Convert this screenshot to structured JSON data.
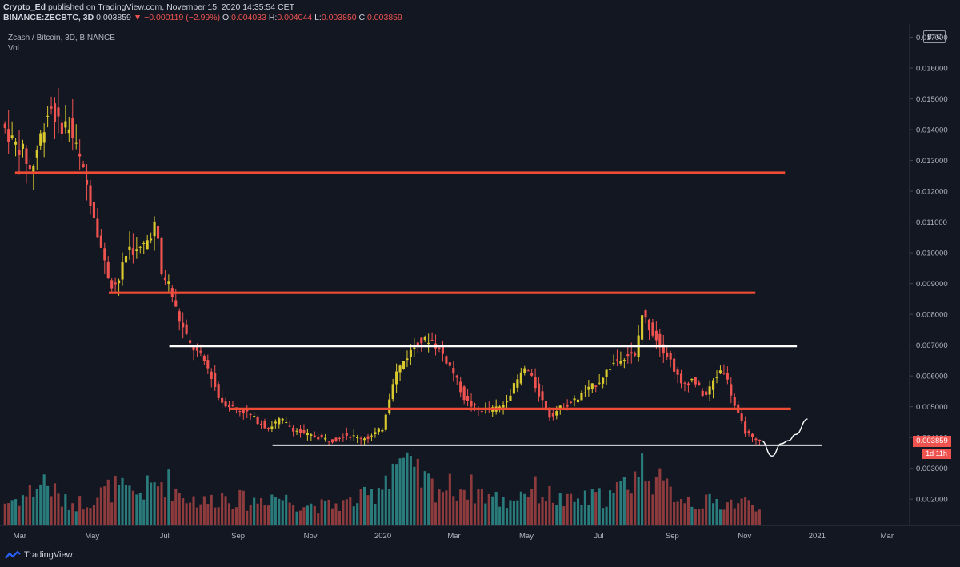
{
  "header": {
    "user": "Crypto_Ed",
    "published_text": " published on TradingView.com, November 15, 2020 14:35:54 CET",
    "symbol": "BINANCE:ZECBTC, 3D",
    "last": "0.003859",
    "change": "−0.000119 (−2.99%)",
    "o_label": "O:",
    "o_value": "0.004033",
    "h_label": "H:",
    "h_value": "0.004044",
    "l_label": "L:",
    "l_value": "0.003850",
    "c_label": "C:",
    "c_value": "0.003859"
  },
  "legend": {
    "title": "Zcash / Bitcoin, 3D, BINANCE",
    "vol": "Vol"
  },
  "scale": {
    "currency": "BTC",
    "last_price": "0.003859",
    "countdown": "1d 11h"
  },
  "footer": {
    "brand": "TradingView"
  },
  "colors": {
    "background": "#131722",
    "bull": "#d9c92e",
    "bear": "#ef5350",
    "resistance": "#ef4b35",
    "support": "#ffffff",
    "vol_bull": "#2a7c7c",
    "vol_bear": "#8e3b3e",
    "axis_text": "#b2b5be"
  },
  "chart_data": {
    "type": "candlestick",
    "title": "Zcash / Bitcoin, 3D, BINANCE",
    "y_axis": {
      "ticks": [
        "0.017000",
        "0.016000",
        "0.015000",
        "0.014000",
        "0.013000",
        "0.012000",
        "0.011000",
        "0.010000",
        "0.009000",
        "0.008000",
        "0.007000",
        "0.006000",
        "0.005000",
        "0.004000",
        "0.003000",
        "0.002000"
      ],
      "tick_values": [
        0.017,
        0.016,
        0.015,
        0.014,
        0.013,
        0.012,
        0.011,
        0.01,
        0.009,
        0.008,
        0.007,
        0.006,
        0.005,
        0.004,
        0.003,
        0.002
      ],
      "range": [
        0.0012,
        0.0173
      ]
    },
    "x_axis": {
      "range": [
        "2019-02-15",
        "2021-03-20"
      ],
      "ticks": [
        {
          "label": "Mar",
          "date": "2019-03-01"
        },
        {
          "label": "May",
          "date": "2019-05-01"
        },
        {
          "label": "Jul",
          "date": "2019-07-01"
        },
        {
          "label": "Sep",
          "date": "2019-09-01"
        },
        {
          "label": "Nov",
          "date": "2019-11-01"
        },
        {
          "label": "2020",
          "date": "2020-01-01"
        },
        {
          "label": "Mar",
          "date": "2020-03-01"
        },
        {
          "label": "May",
          "date": "2020-05-01"
        },
        {
          "label": "Jul",
          "date": "2020-07-01"
        },
        {
          "label": "Sep",
          "date": "2020-09-01"
        },
        {
          "label": "Nov",
          "date": "2020-11-01"
        },
        {
          "label": "2021",
          "date": "2021-01-01"
        },
        {
          "label": "Mar",
          "date": "2021-03-01"
        }
      ]
    },
    "price_series": [
      [
        "2019-02-15",
        0.0142
      ],
      [
        "2019-02-25",
        0.0136
      ],
      [
        "2019-03-05",
        0.0133
      ],
      [
        "2019-03-12",
        0.0126
      ],
      [
        "2019-03-20",
        0.0138
      ],
      [
        "2019-03-28",
        0.0148
      ],
      [
        "2019-04-05",
        0.0141
      ],
      [
        "2019-04-12",
        0.0142
      ],
      [
        "2019-04-20",
        0.0133
      ],
      [
        "2019-04-28",
        0.0122
      ],
      [
        "2019-05-05",
        0.0111
      ],
      [
        "2019-05-12",
        0.0098
      ],
      [
        "2019-05-18",
        0.009
      ],
      [
        "2019-05-24",
        0.009
      ],
      [
        "2019-06-02",
        0.0102
      ],
      [
        "2019-06-10",
        0.01
      ],
      [
        "2019-06-18",
        0.0104
      ],
      [
        "2019-06-25",
        0.011
      ],
      [
        "2019-06-30",
        0.0093
      ],
      [
        "2019-07-06",
        0.009
      ],
      [
        "2019-07-14",
        0.0079
      ],
      [
        "2019-07-24",
        0.007
      ],
      [
        "2019-08-03",
        0.0066
      ],
      [
        "2019-08-10",
        0.0061
      ],
      [
        "2019-08-18",
        0.0052
      ],
      [
        "2019-08-28",
        0.005
      ],
      [
        "2019-09-10",
        0.0048
      ],
      [
        "2019-09-20",
        0.0045
      ],
      [
        "2019-09-28",
        0.0043
      ],
      [
        "2019-10-08",
        0.0046
      ],
      [
        "2019-10-18",
        0.0043
      ],
      [
        "2019-10-28",
        0.0041
      ],
      [
        "2019-11-10",
        0.004
      ],
      [
        "2019-11-20",
        0.0039
      ],
      [
        "2019-12-02",
        0.0041
      ],
      [
        "2019-12-12",
        0.004
      ],
      [
        "2019-12-22",
        0.004
      ],
      [
        "2020-01-02",
        0.0043
      ],
      [
        "2020-01-12",
        0.006
      ],
      [
        "2020-01-22",
        0.0066
      ],
      [
        "2020-02-01",
        0.0071
      ],
      [
        "2020-02-12",
        0.0072
      ],
      [
        "2020-02-22",
        0.0067
      ],
      [
        "2020-03-02",
        0.0061
      ],
      [
        "2020-03-12",
        0.0052
      ],
      [
        "2020-03-22",
        0.0049
      ],
      [
        "2020-04-02",
        0.0049
      ],
      [
        "2020-04-12",
        0.005
      ],
      [
        "2020-04-24",
        0.0058
      ],
      [
        "2020-05-02",
        0.0063
      ],
      [
        "2020-05-12",
        0.0055
      ],
      [
        "2020-05-22",
        0.0047
      ],
      [
        "2020-06-02",
        0.005
      ],
      [
        "2020-06-12",
        0.0052
      ],
      [
        "2020-06-22",
        0.0055
      ],
      [
        "2020-07-02",
        0.0058
      ],
      [
        "2020-07-12",
        0.0063
      ],
      [
        "2020-07-20",
        0.0066
      ],
      [
        "2020-07-28",
        0.0067
      ],
      [
        "2020-08-02",
        0.0066
      ],
      [
        "2020-08-08",
        0.008
      ],
      [
        "2020-08-14",
        0.0076
      ],
      [
        "2020-08-22",
        0.0071
      ],
      [
        "2020-09-01",
        0.0065
      ],
      [
        "2020-09-10",
        0.0057
      ],
      [
        "2020-09-20",
        0.0059
      ],
      [
        "2020-09-30",
        0.0053
      ],
      [
        "2020-10-08",
        0.0059
      ],
      [
        "2020-10-15",
        0.0063
      ],
      [
        "2020-10-20",
        0.0057
      ],
      [
        "2020-10-26",
        0.0049
      ],
      [
        "2020-11-03",
        0.0042
      ],
      [
        "2020-11-10",
        0.0039
      ],
      [
        "2020-11-15",
        0.003859
      ]
    ],
    "volume_series": [
      [
        "2019-02-15",
        0.3
      ],
      [
        "2019-03-05",
        0.4
      ],
      [
        "2019-03-20",
        0.6
      ],
      [
        "2019-04-05",
        0.3
      ],
      [
        "2019-04-20",
        0.3
      ],
      [
        "2019-05-05",
        0.4
      ],
      [
        "2019-05-18",
        0.5
      ],
      [
        "2019-06-02",
        0.4
      ],
      [
        "2019-06-18",
        0.5
      ],
      [
        "2019-06-30",
        0.6
      ],
      [
        "2019-07-14",
        0.4
      ],
      [
        "2019-08-03",
        0.3
      ],
      [
        "2019-08-18",
        0.4
      ],
      [
        "2019-09-10",
        0.3
      ],
      [
        "2019-09-28",
        0.4
      ],
      [
        "2019-10-18",
        0.3
      ],
      [
        "2019-11-10",
        0.25
      ],
      [
        "2019-12-02",
        0.3
      ],
      [
        "2019-12-22",
        0.4
      ],
      [
        "2020-01-12",
        0.9
      ],
      [
        "2020-01-22",
        0.7
      ],
      [
        "2020-02-12",
        0.5
      ],
      [
        "2020-03-12",
        0.5
      ],
      [
        "2020-04-12",
        0.3
      ],
      [
        "2020-05-02",
        0.5
      ],
      [
        "2020-06-02",
        0.3
      ],
      [
        "2020-07-12",
        0.4
      ],
      [
        "2020-08-08",
        0.8
      ],
      [
        "2020-08-22",
        0.5
      ],
      [
        "2020-09-20",
        0.3
      ],
      [
        "2020-10-15",
        0.3
      ],
      [
        "2020-11-10",
        0.3
      ]
    ],
    "horizontal_lines": [
      {
        "price": 0.0126,
        "start": "2019-02-25",
        "end": "2020-12-05",
        "color": "resistance"
      },
      {
        "price": 0.0087,
        "start": "2019-05-15",
        "end": "2020-11-10",
        "color": "resistance"
      },
      {
        "price": 0.00697,
        "start": "2019-07-05",
        "end": "2020-12-15",
        "color": "support"
      },
      {
        "price": 0.00493,
        "start": "2019-08-25",
        "end": "2020-12-10",
        "color": "resistance"
      },
      {
        "price": 0.00375,
        "start": "2019-09-30",
        "end": "2021-01-05",
        "color": "support"
      }
    ],
    "projection": [
      [
        "2020-11-15",
        0.0039
      ],
      [
        "2020-11-24",
        0.0034
      ],
      [
        "2020-12-02",
        0.0038
      ],
      [
        "2020-12-08",
        0.0039
      ],
      [
        "2020-12-14",
        0.0041
      ],
      [
        "2020-12-24",
        0.0046
      ]
    ]
  }
}
